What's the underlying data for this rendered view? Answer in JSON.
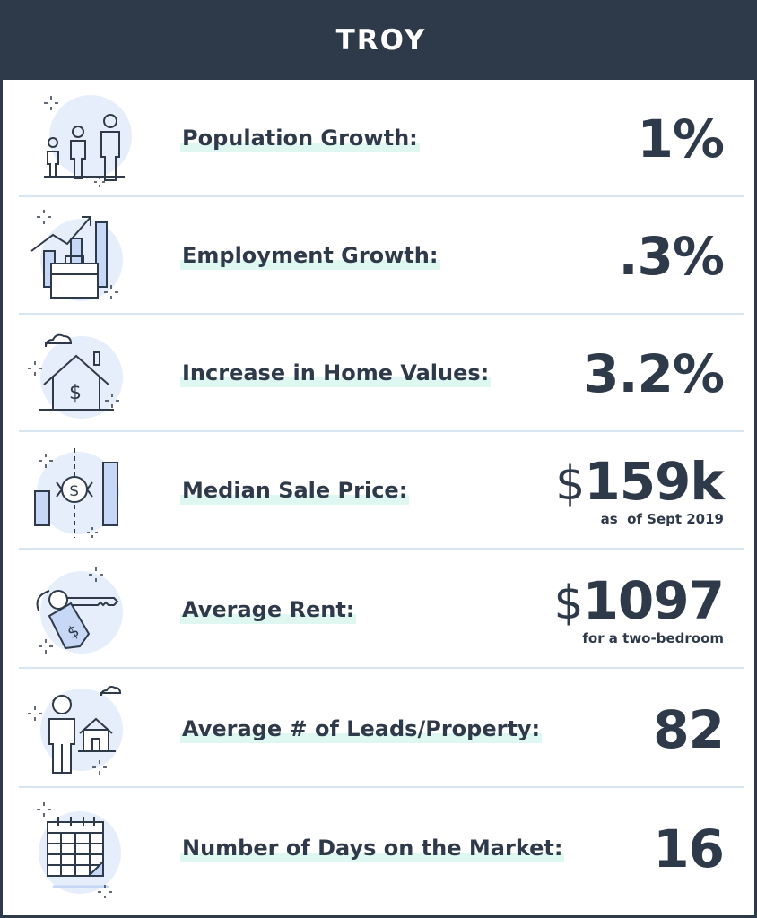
{
  "title": "TROY",
  "colors": {
    "header_bg": "#2e3a4a",
    "text": "#2e3a4a",
    "highlight": "#dff7f1",
    "icon_bg": "#e6eefb",
    "icon_fill": "#c7d8f6",
    "separator": "#d7e4f2"
  },
  "rows": [
    {
      "label": "Population Growth:",
      "value": "1%",
      "icon": "people-icon"
    },
    {
      "label": "Employment Growth:",
      "value": ".3%",
      "icon": "briefcase-growth-icon"
    },
    {
      "label": "Increase in Home Values:",
      "value": "3.2%",
      "icon": "house-dollar-icon"
    },
    {
      "label": "Median Sale Price:",
      "currency": "$",
      "value": "159k",
      "note": "as  of Sept 2019",
      "icon": "price-compare-icon"
    },
    {
      "label": "Average Rent:",
      "currency": "$",
      "value": "1097",
      "note": "for a two-bedroom",
      "icon": "key-tag-icon"
    },
    {
      "label": "Average # of Leads/Property:",
      "value": "82",
      "icon": "person-house-icon"
    },
    {
      "label": "Number of Days on the Market:",
      "value": "16",
      "icon": "calendar-icon"
    }
  ]
}
